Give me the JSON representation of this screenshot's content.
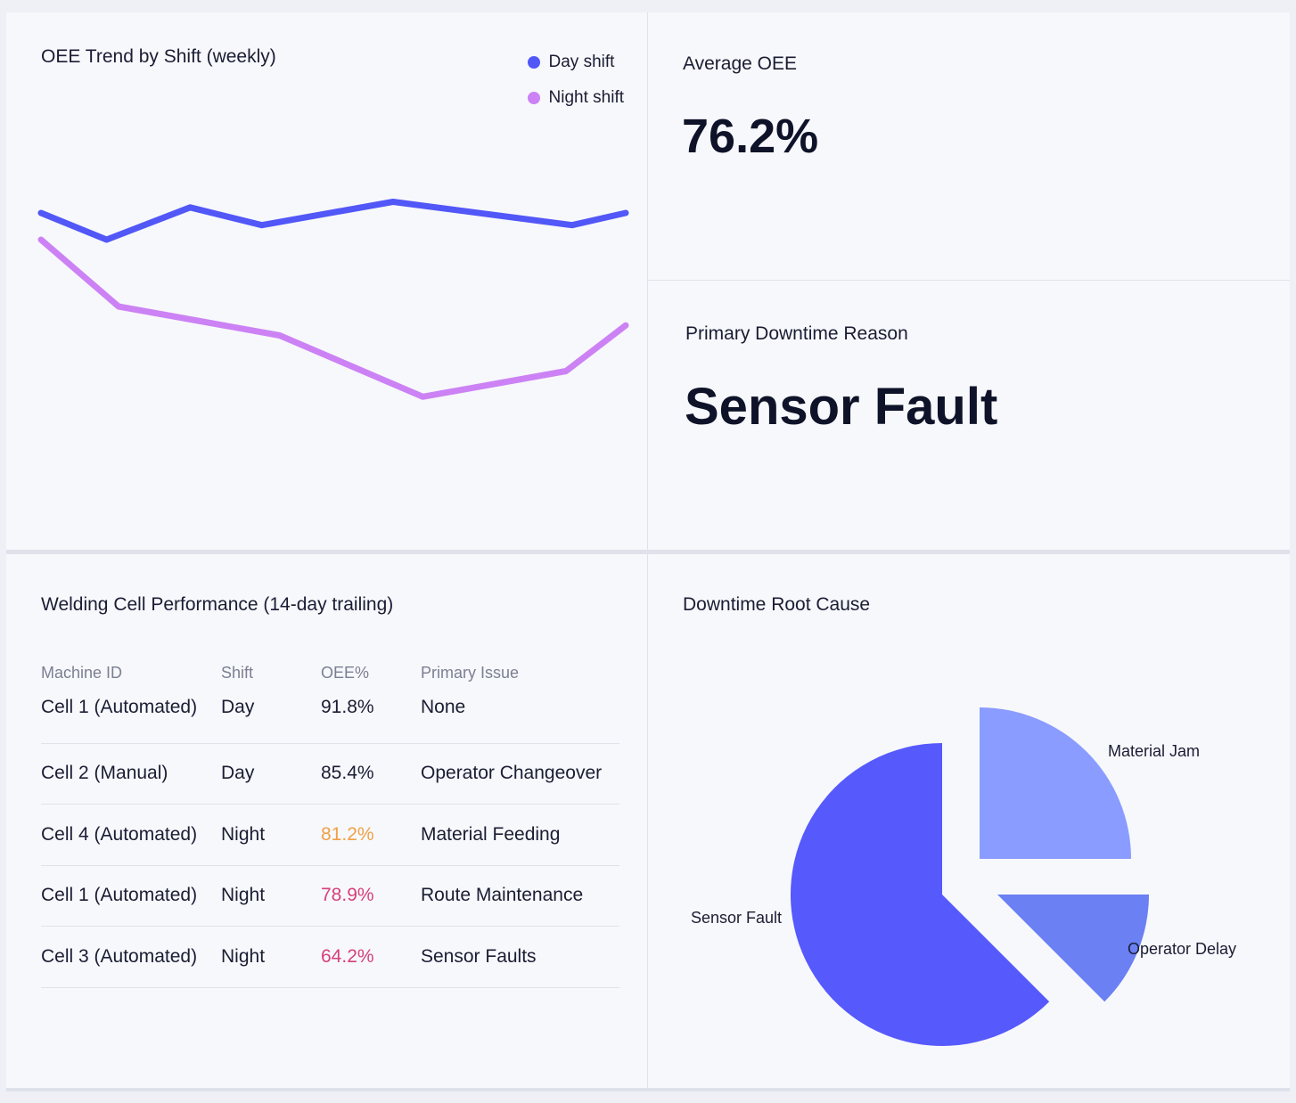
{
  "trend": {
    "title": "OEE Trend by Shift (weekly)",
    "legend": [
      {
        "label": "Day shift",
        "color": "#5257f7"
      },
      {
        "label": "Night shift",
        "color": "#cc82f4"
      }
    ]
  },
  "average_oee": {
    "label": "Average OEE",
    "value": "76.2%"
  },
  "downtime_reason": {
    "label": "Primary Downtime Reason",
    "value": "Sensor Fault"
  },
  "table": {
    "title": "Welding Cell Performance (14-day trailing)",
    "headers": [
      "Machine ID",
      "Shift",
      "OEE%",
      "Primary Issue"
    ],
    "rows": [
      {
        "machine": "Cell 1 (Automated)",
        "shift": "Day",
        "oee": "91.8%",
        "issue": "None",
        "oee_color": "#1a1d33"
      },
      {
        "machine": "Cell 2 (Manual)",
        "shift": "Day",
        "oee": "85.4%",
        "issue": "Operator Changeover",
        "oee_color": "#1a1d33"
      },
      {
        "machine": "Cell 4 (Automated)",
        "shift": "Night",
        "oee": "81.2%",
        "issue": "Material Feeding",
        "oee_color": "#f0a045"
      },
      {
        "machine": "Cell 1 (Automated)",
        "shift": "Night",
        "oee": "78.9%",
        "issue": "Route Maintenance",
        "oee_color": "#d6417c"
      },
      {
        "machine": "Cell 3 (Automated)",
        "shift": "Night",
        "oee": "64.2%",
        "issue": "Sensor Faults",
        "oee_color": "#d6417c"
      }
    ]
  },
  "pie": {
    "title": "Downtime Root Cause"
  },
  "chart_data": [
    {
      "type": "line",
      "title": "OEE Trend by Shift (weekly)",
      "x": [
        0,
        1.1,
        2.5,
        3.7,
        6,
        9,
        9.8
      ],
      "ylim": [
        60,
        100
      ],
      "grid": false,
      "legend_position": "top-right",
      "series": [
        {
          "name": "Day shift",
          "color": "#5257f7",
          "x": [
            0,
            1.1,
            2.5,
            3.7,
            5.9,
            8.9,
            9.8
          ],
          "values": [
            86.8,
            84.4,
            87.3,
            85.7,
            87.8,
            85.7,
            86.8
          ]
        },
        {
          "name": "Night shift",
          "color": "#cc82f4",
          "x": [
            0,
            1.3,
            4,
            6.4,
            8.8,
            9.8
          ],
          "values": [
            84.4,
            78.4,
            75.8,
            70.3,
            72.6,
            76.7
          ]
        }
      ]
    },
    {
      "type": "pie",
      "title": "Downtime Root Cause",
      "exploded": true,
      "slices": [
        {
          "label": "Sensor Fault",
          "value": 62.5,
          "color": "#5659fc"
        },
        {
          "label": "Material Jam",
          "value": 25.0,
          "color": "#8a9cff"
        },
        {
          "label": "Operator Delay",
          "value": 12.5,
          "color": "#6a80f3"
        }
      ]
    }
  ]
}
